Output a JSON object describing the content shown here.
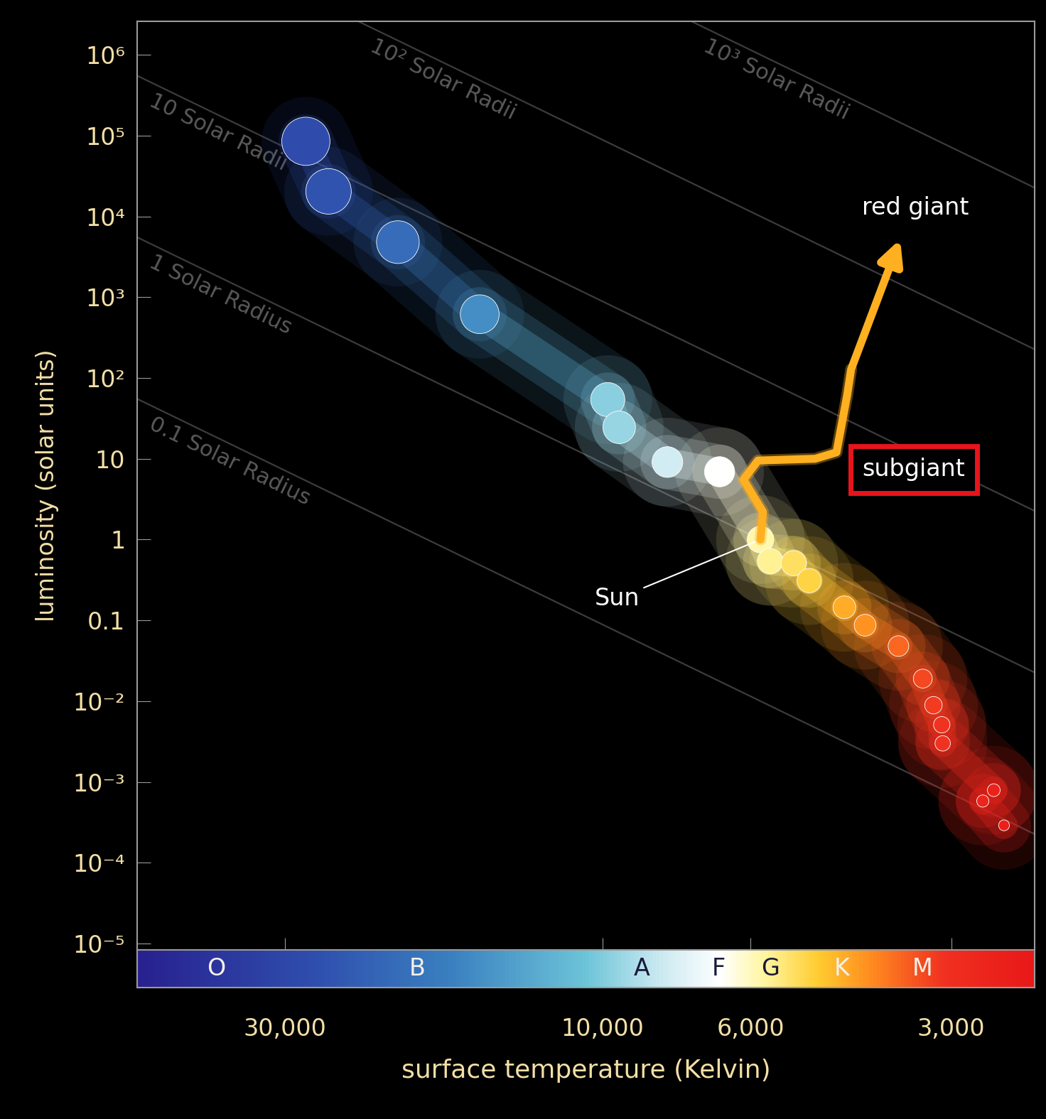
{
  "chart_data": {
    "type": "scatter",
    "x_label": "surface temperature (Kelvin)",
    "y_label": "luminosity (solar units)",
    "log": true,
    "grid": false,
    "xlim": [
      50000,
      2250
    ],
    "xticks": [
      {
        "value": 30000,
        "label": "30,000"
      },
      {
        "value": 10000,
        "label": "10,000"
      },
      {
        "value": 6000,
        "label": "6,000"
      },
      {
        "value": 3000,
        "label": "3,000"
      }
    ],
    "ylim": [
      8.3e-06,
      2600000.0
    ],
    "yticks": [
      {
        "value": 1000000,
        "label": "10⁶"
      },
      {
        "value": 100000,
        "label": "10⁵"
      },
      {
        "value": 10000,
        "label": "10⁴"
      },
      {
        "value": 1000,
        "label": "10³"
      },
      {
        "value": 100,
        "label": "10²"
      },
      10,
      1,
      0.1,
      {
        "value": 0.01,
        "label": "10⁻²"
      },
      {
        "value": 0.001,
        "label": "10⁻³"
      },
      {
        "value": 0.0001,
        "label": "10⁻⁴"
      },
      {
        "value": 1e-05,
        "label": "10⁻⁵"
      }
    ],
    "x": [
      27900,
      25800,
      20300,
      15300,
      9830,
      9450,
      8000,
      6680,
      5800,
      5610,
      5170,
      4900,
      4340,
      4040,
      3600,
      3310,
      3190,
      3100,
      3090,
      2590,
      2690,
      2500
    ],
    "values": [
      85000,
      20400,
      4800,
      615,
      54,
      24.5,
      9.1,
      6.9,
      1,
      0.54,
      0.51,
      0.31,
      0.145,
      0.087,
      0.048,
      0.019,
      0.0089,
      0.0051,
      0.003,
      0.00079,
      0.00058,
      0.00029
    ],
    "evolution_track": {
      "x": [
        5800,
        5750,
        6150,
        5850,
        4800,
        4460,
        4300,
        4240,
        3570
      ],
      "values": [
        1,
        2.2,
        5.5,
        9.5,
        10,
        12,
        60,
        128,
        5500
      ],
      "color": "#ffb020"
    },
    "radius_lines": {
      "solar_temperature": 5800,
      "radii": [
        0.1,
        1,
        10,
        100,
        1000
      ],
      "labels": [
        "0.1 Solar Radius",
        "1 Solar Radius",
        "10 Solar Radii",
        "10² Solar Radii",
        "10³ Solar Radii"
      ]
    },
    "spectral_classes": {
      "labels": [
        "O",
        "B",
        "A",
        "F",
        "G",
        "K",
        "M"
      ],
      "x": [
        38000,
        19000,
        8750,
        6700,
        5600,
        4380,
        3310
      ]
    },
    "annotations": [
      {
        "text": "Sun",
        "x": 5800,
        "y": 1
      },
      {
        "text": "red giant",
        "x": 3570,
        "y": 5500
      },
      {
        "text": "subgiant",
        "x": 4800,
        "y": 10,
        "color": "#e8141c"
      }
    ]
  }
}
